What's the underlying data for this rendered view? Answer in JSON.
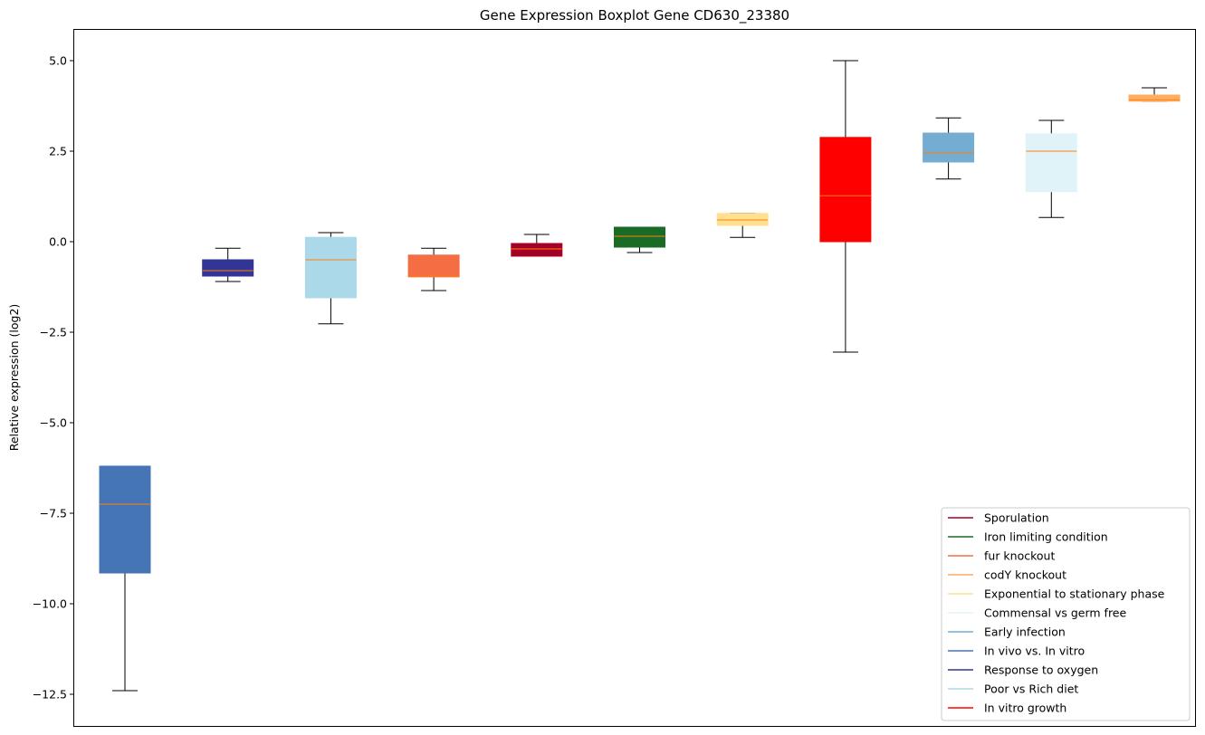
{
  "chart_data": {
    "type": "boxplot",
    "title": "Gene Expression Boxplot Gene CD630_23380",
    "xlabel": "",
    "ylabel": "Relative expression (log2)",
    "ylim": [
      -13.2,
      5.85
    ],
    "yticks": [
      5.0,
      2.5,
      0.0,
      -2.5,
      -5.0,
      -7.5,
      -10.0,
      -12.5
    ],
    "ytick_labels": [
      "5.0",
      "2.5",
      "0.0",
      "−2.5",
      "−5.0",
      "−7.5",
      "−10.0",
      "−12.5"
    ],
    "grid": false,
    "legend_position": "lower-right",
    "median_color": "#ff7f0e",
    "boxes": [
      {
        "whisker_low": -12.4,
        "q1": -9.15,
        "median": -7.25,
        "q3": -6.2,
        "whisker_high": -6.2,
        "color": "#4575b4"
      },
      {
        "whisker_low": -1.1,
        "q1": -0.95,
        "median": -0.8,
        "q3": -0.5,
        "whisker_high": -0.18,
        "color": "#313695"
      },
      {
        "whisker_low": -2.27,
        "q1": -1.55,
        "median": -0.5,
        "q3": 0.12,
        "whisker_high": 0.25,
        "color": "#abd9e9"
      },
      {
        "whisker_low": -1.35,
        "q1": -0.97,
        "median": -0.97,
        "q3": -0.37,
        "whisker_high": -0.18,
        "color": "#f46d43"
      },
      {
        "whisker_low": -0.4,
        "q1": -0.4,
        "median": -0.2,
        "q3": -0.05,
        "whisker_high": 0.2,
        "color": "#a50026"
      },
      {
        "whisker_low": -0.3,
        "q1": -0.15,
        "median": 0.15,
        "q3": 0.4,
        "whisker_high": 0.4,
        "color": "#1a6b25"
      },
      {
        "whisker_low": 0.12,
        "q1": 0.45,
        "median": 0.6,
        "q3": 0.78,
        "whisker_high": 0.78,
        "color": "#fee090"
      },
      {
        "whisker_low": -3.05,
        "q1": 0.0,
        "median": 1.27,
        "q3": 2.88,
        "whisker_high": 5.0,
        "color": "#ff0000"
      },
      {
        "whisker_low": 1.73,
        "q1": 2.2,
        "median": 2.45,
        "q3": 3.0,
        "whisker_high": 3.42,
        "color": "#74add1"
      },
      {
        "whisker_low": 0.67,
        "q1": 1.38,
        "median": 2.5,
        "q3": 2.98,
        "whisker_high": 3.35,
        "color": "#e0f3f8"
      },
      {
        "whisker_low": 3.88,
        "q1": 3.88,
        "median": 3.92,
        "q3": 4.05,
        "whisker_high": 4.25,
        "color": "#fdae61"
      }
    ],
    "legend": [
      {
        "label": "Sporulation",
        "color": "#a50026"
      },
      {
        "label": "Iron limiting condition",
        "color": "#1a6b25"
      },
      {
        "label": "fur knockout",
        "color": "#f46d43"
      },
      {
        "label": "codY knockout",
        "color": "#fdae61"
      },
      {
        "label": "Exponential to stationary phase",
        "color": "#fee090"
      },
      {
        "label": "Commensal vs germ free",
        "color": "#e0f3f8"
      },
      {
        "label": "Early infection",
        "color": "#74add1"
      },
      {
        "label": "In vivo vs. In vitro",
        "color": "#4575b4"
      },
      {
        "label": "Response to oxygen",
        "color": "#313695"
      },
      {
        "label": "Poor vs Rich diet",
        "color": "#abd9e9"
      },
      {
        "label": "In vitro growth",
        "color": "#ff0000"
      }
    ]
  }
}
